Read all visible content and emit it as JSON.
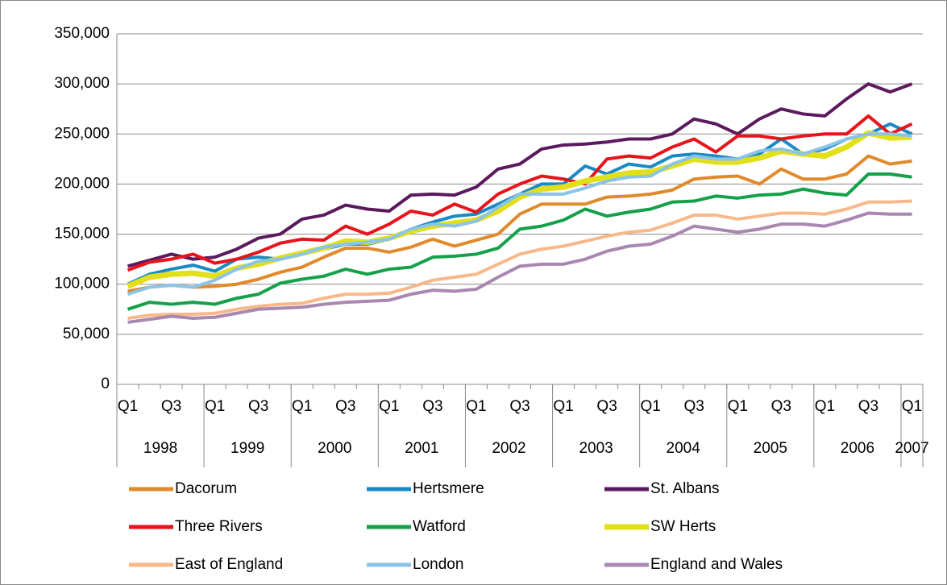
{
  "chart_data": {
    "type": "line",
    "categories": [
      "Q1",
      null,
      "Q3",
      null,
      "Q1",
      null,
      "Q3",
      null,
      "Q1",
      null,
      "Q3",
      null,
      "Q1",
      null,
      "Q3",
      null,
      "Q1",
      null,
      "Q3",
      null,
      "Q1",
      null,
      "Q3",
      null,
      "Q1",
      null,
      "Q3",
      null,
      "Q1",
      null,
      "Q3",
      null,
      "Q1",
      null,
      "Q3",
      null,
      "Q1"
    ],
    "years": [
      "1998",
      "1999",
      "2000",
      "2001",
      "2002",
      "2003",
      "2004",
      "2005",
      "2006",
      "2007"
    ],
    "ylim": [
      0,
      350000
    ],
    "yticks": [
      0,
      {
        "value": 50000,
        "label": "50,000"
      },
      {
        "value": 100000,
        "label": "100,000"
      },
      {
        "value": 150000,
        "label": "150,000"
      },
      {
        "value": 200000,
        "label": "200,000"
      },
      {
        "value": 250000,
        "label": "250,000"
      },
      {
        "value": 300000,
        "label": "300,000"
      },
      {
        "value": 350000,
        "label": "350,000"
      }
    ],
    "grid": true,
    "legend": "bottom",
    "series": [
      {
        "name": "Dacorum",
        "color": "#e08a2c",
        "values": [
          93000,
          97000,
          99000,
          97000,
          98000,
          100000,
          105000,
          112000,
          117000,
          127000,
          136000,
          136000,
          132000,
          137000,
          145000,
          138000,
          144000,
          150000,
          170000,
          180000,
          180000,
          180000,
          187000,
          188000,
          190000,
          194000,
          205000,
          207000,
          208000,
          200000,
          215000,
          205000,
          205000,
          210000,
          228000,
          220000,
          223000
        ]
      },
      {
        "name": "Hertsmere",
        "color": "#1a8ac6",
        "values": [
          100000,
          110000,
          115000,
          119000,
          113000,
          125000,
          127000,
          125000,
          130000,
          135000,
          140000,
          140000,
          145000,
          155000,
          162000,
          168000,
          170000,
          180000,
          190000,
          200000,
          200000,
          218000,
          210000,
          220000,
          217000,
          228000,
          230000,
          228000,
          225000,
          230000,
          245000,
          230000,
          235000,
          245000,
          250000,
          260000,
          250000
        ]
      },
      {
        "name": "St. Albans",
        "color": "#5c1a5e",
        "values": [
          118000,
          124000,
          130000,
          125000,
          127000,
          135000,
          146000,
          150000,
          165000,
          169000,
          179000,
          175000,
          173000,
          189000,
          190000,
          189000,
          197000,
          215000,
          220000,
          235000,
          239000,
          240000,
          242000,
          245000,
          245000,
          250000,
          265000,
          260000,
          250000,
          265000,
          275000,
          270000,
          268000,
          285000,
          300000,
          292000,
          300000
        ]
      },
      {
        "name": "Three Rivers",
        "color": "#e8141c",
        "values": [
          114000,
          122000,
          125000,
          130000,
          121000,
          125000,
          132000,
          141000,
          145000,
          144000,
          158000,
          150000,
          160000,
          173000,
          169000,
          180000,
          172000,
          190000,
          200000,
          208000,
          205000,
          200000,
          225000,
          228000,
          226000,
          237000,
          245000,
          232000,
          248000,
          248000,
          245000,
          248000,
          250000,
          250000,
          268000,
          250000,
          260000
        ]
      },
      {
        "name": "Watford",
        "color": "#15a14a",
        "values": [
          75000,
          82000,
          80000,
          82000,
          80000,
          86000,
          90000,
          101000,
          105000,
          108000,
          115000,
          110000,
          115000,
          117000,
          127000,
          128000,
          130000,
          136000,
          155000,
          158000,
          164000,
          175000,
          168000,
          172000,
          175000,
          182000,
          183000,
          188000,
          186000,
          189000,
          190000,
          195000,
          191000,
          189000,
          210000,
          210000,
          207000
        ]
      },
      {
        "name": "SW Herts",
        "color": "#e2e01a",
        "values": [
          98000,
          107000,
          110000,
          111000,
          108000,
          116000,
          120000,
          126000,
          131000,
          136000,
          143000,
          142000,
          146000,
          153000,
          158000,
          161000,
          164000,
          173000,
          187000,
          195000,
          197000,
          203000,
          207000,
          211000,
          212000,
          218000,
          225000,
          222000,
          222000,
          226000,
          233000,
          230000,
          228000,
          237000,
          251000,
          246000,
          247000
        ]
      },
      {
        "name": "East of England",
        "color": "#f8b88a",
        "values": [
          66000,
          69000,
          70000,
          70000,
          71000,
          75000,
          78000,
          80000,
          81000,
          86000,
          90000,
          90000,
          91000,
          97000,
          104000,
          107000,
          110000,
          120000,
          130000,
          135000,
          138000,
          143000,
          148000,
          152000,
          154000,
          161000,
          169000,
          169000,
          165000,
          168000,
          171000,
          171000,
          170000,
          175000,
          182000,
          182000,
          183000
        ]
      },
      {
        "name": "London",
        "color": "#8cc4e8",
        "values": [
          90000,
          97000,
          99000,
          97000,
          104000,
          115000,
          123000,
          125000,
          130000,
          137000,
          140000,
          142000,
          145000,
          155000,
          160000,
          158000,
          163000,
          177000,
          190000,
          190000,
          190000,
          196000,
          203000,
          207000,
          208000,
          220000,
          228000,
          225000,
          225000,
          233000,
          235000,
          230000,
          237000,
          245000,
          250000,
          250000,
          248000
        ]
      },
      {
        "name": "England and Wales",
        "color": "#a888b0",
        "values": [
          62000,
          65000,
          68000,
          66000,
          67000,
          71000,
          75000,
          76000,
          77000,
          80000,
          82000,
          83000,
          84000,
          90000,
          94000,
          93000,
          95000,
          107000,
          118000,
          120000,
          120000,
          125000,
          133000,
          138000,
          140000,
          148000,
          158000,
          155000,
          152000,
          155000,
          160000,
          160000,
          158000,
          164000,
          171000,
          170000,
          170000
        ]
      }
    ]
  }
}
